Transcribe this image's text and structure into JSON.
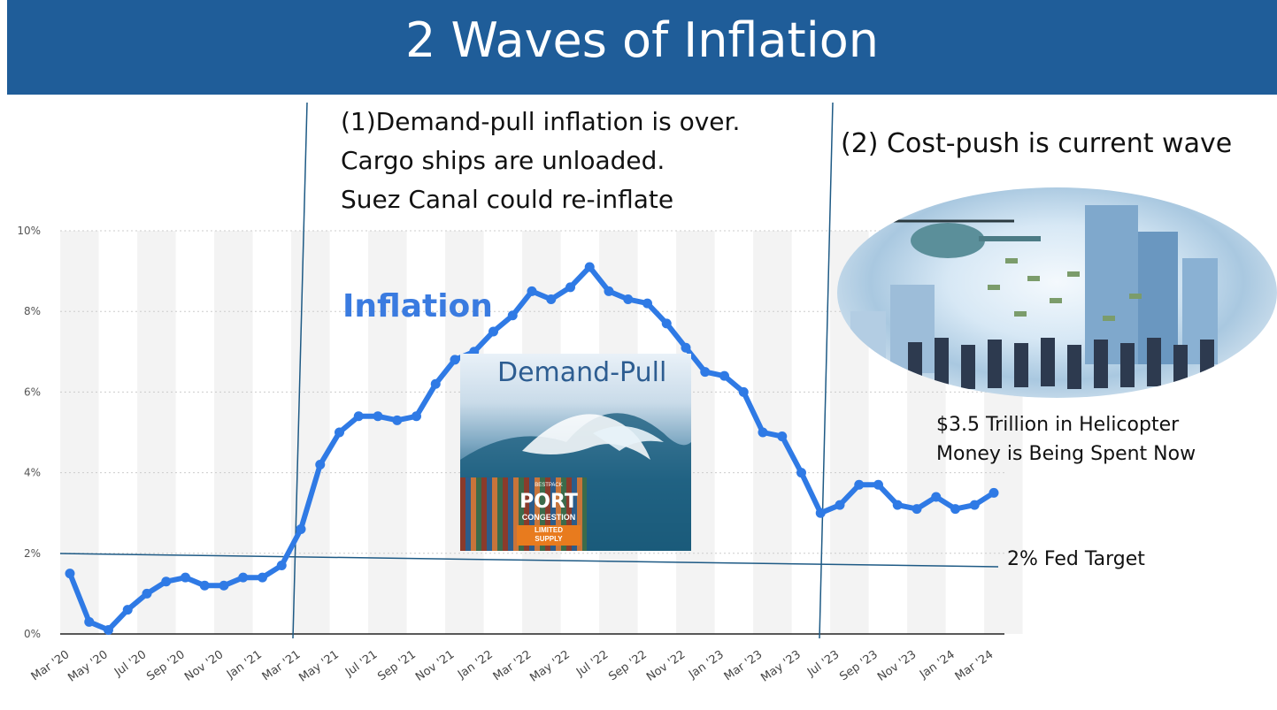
{
  "title": "2 Waves of Inflation",
  "annotations": {
    "note1_lines": [
      "(1)Demand-pull inflation  is over.",
      "Cargo ships are unloaded.",
      "Suez Canal could re-inflate"
    ],
    "note2": "(2) Cost-push is current wave",
    "inflation_label": "Inflation",
    "helicopter_lines": [
      "$3.5 Trillion in Helicopter",
      "Money  is Being Spent Now"
    ],
    "fed_target_label": "2% Fed Target",
    "demand_pull_label": "Demand-Pull",
    "port_image": {
      "brand": "BESTPACK",
      "big": "PORT",
      "sub": "CONGESTION",
      "tag1": "LIMITED",
      "tag2": "SUPPLY"
    }
  },
  "colors": {
    "title_bg": "#1f5d99",
    "line": "#2f7ae5",
    "annotation_line": "#1e5a85",
    "inflation_text": "#3a7be0"
  },
  "chart_data": {
    "type": "line",
    "ylim": [
      0,
      10
    ],
    "yticks": [
      "0%",
      "2%",
      "4%",
      "6%",
      "8%",
      "10%"
    ],
    "ytick_values": [
      0,
      2,
      4,
      6,
      8,
      10
    ],
    "xtick_labels": [
      "Mar '20",
      "May '20",
      "Jul '20",
      "Sep '20",
      "Nov '20",
      "Jan '21",
      "Mar '21",
      "May '21",
      "Jul '21",
      "Sep '21",
      "Nov '21",
      "Jan '22",
      "Mar '22",
      "May '22",
      "Jul '22",
      "Sep '22",
      "Nov '22",
      "Jan '23",
      "Mar '23",
      "May '23",
      "Jul '23",
      "Sep '23",
      "Nov '23",
      "Jan '24",
      "Mar '24"
    ],
    "series": [
      {
        "values": [
          1.5,
          0.3,
          0.1,
          0.6,
          1.0,
          1.3,
          1.4,
          1.2,
          1.2,
          1.4,
          1.4,
          1.7,
          2.6,
          4.2,
          5.0,
          5.4,
          5.4,
          5.3,
          5.4,
          6.2,
          6.8,
          7.0,
          7.5,
          7.9,
          8.5,
          8.3,
          8.6,
          9.1,
          8.5,
          8.3,
          8.2,
          7.7,
          7.1,
          6.5,
          6.4,
          6.0,
          5.0,
          4.9,
          4.0,
          3.0,
          3.2,
          3.7,
          3.7,
          3.2,
          3.1,
          3.4,
          3.1,
          3.2,
          3.5
        ]
      }
    ],
    "grid": true,
    "vertical_lines": [
      "Mar '21",
      "Jul '23"
    ],
    "fed_target": 2
  }
}
